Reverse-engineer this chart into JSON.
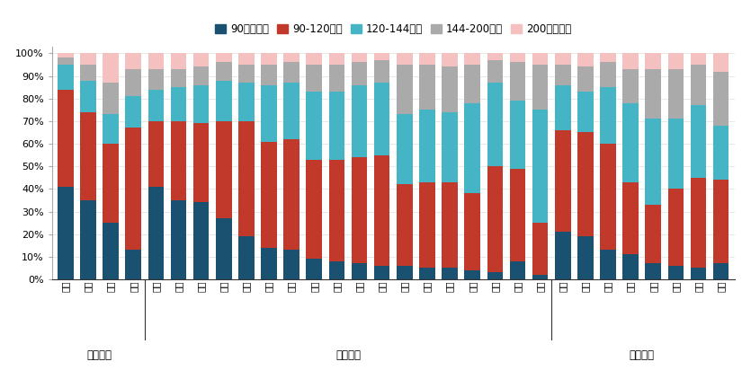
{
  "cities": [
    "深圳",
    "广州",
    "北京",
    "上海",
    "厦门",
    "沈阳",
    "福州",
    "天津",
    "重庆",
    "南京",
    "宁波",
    "南昌",
    "青岛",
    "无锡",
    "武汉",
    "济南",
    "成都",
    "苏州",
    "西安",
    "合肥",
    "杭州",
    "长沙",
    "佛山",
    "东莞",
    "唐山",
    "泉州",
    "芜湖",
    "赣州",
    "扬州",
    "绍兴"
  ],
  "groups": [
    {
      "name": "一线城市",
      "start": 0,
      "end": 3
    },
    {
      "name": "二线城市",
      "start": 4,
      "end": 21
    },
    {
      "name": "三线城市",
      "start": 22,
      "end": 29
    }
  ],
  "series": {
    "90平米以下": [
      41,
      35,
      25,
      13,
      41,
      35,
      34,
      27,
      19,
      14,
      13,
      9,
      8,
      7,
      6,
      6,
      5,
      5,
      4,
      3,
      8,
      2,
      21,
      19,
      13,
      11,
      7,
      6,
      5,
      7
    ],
    "90-120平米": [
      43,
      39,
      35,
      54,
      29,
      35,
      35,
      43,
      51,
      47,
      49,
      44,
      45,
      47,
      49,
      36,
      38,
      38,
      34,
      47,
      41,
      23,
      45,
      46,
      47,
      32,
      26,
      34,
      40,
      37
    ],
    "120-144平米": [
      11,
      14,
      13,
      14,
      14,
      15,
      17,
      18,
      17,
      25,
      25,
      30,
      30,
      32,
      32,
      31,
      32,
      31,
      40,
      37,
      30,
      50,
      20,
      18,
      25,
      35,
      38,
      31,
      32,
      24
    ],
    "144-200平米": [
      3,
      7,
      14,
      12,
      9,
      8,
      8,
      8,
      8,
      9,
      9,
      12,
      12,
      10,
      10,
      22,
      20,
      20,
      17,
      10,
      17,
      20,
      9,
      11,
      11,
      15,
      22,
      22,
      18,
      24
    ],
    "200平米以上": [
      2,
      5,
      13,
      7,
      7,
      7,
      6,
      4,
      5,
      5,
      4,
      5,
      5,
      4,
      3,
      5,
      5,
      6,
      5,
      3,
      4,
      5,
      5,
      6,
      4,
      7,
      7,
      7,
      5,
      8
    ]
  },
  "colors": {
    "90平米以下": "#1a5070",
    "90-120平米": "#c0392b",
    "120-144平米": "#45b5c5",
    "144-200平米": "#aaaaaa",
    "200平米以上": "#f5c0c0"
  },
  "legend_order": [
    "90平米以下",
    "90-120平米",
    "120-144平米",
    "144-200平米",
    "200平米以上"
  ],
  "background_color": "#ffffff"
}
